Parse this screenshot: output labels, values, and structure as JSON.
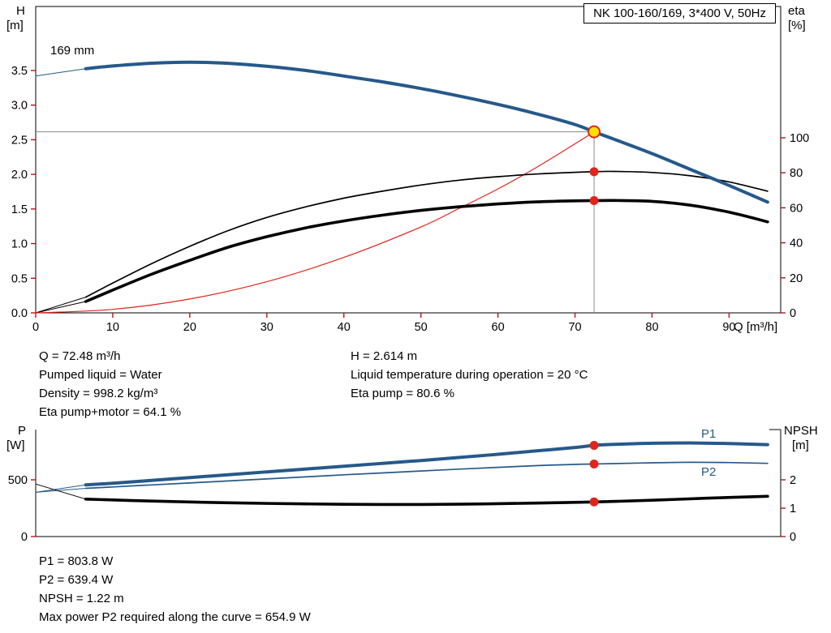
{
  "title_box": {
    "label": "NK 100-160/169, 3*400 V, 50Hz"
  },
  "impeller_label": "169 mm",
  "axes_labels": {
    "h1": "H",
    "h2": "[m]",
    "eta1": "eta",
    "eta2": "[%]",
    "q_unit": "Q [m³/h]",
    "p1": "P",
    "p2": "[W]",
    "npsh1": "NPSH",
    "npsh2": "[m]"
  },
  "series_labels": {
    "p1": "P1",
    "p2": "P2"
  },
  "info_left": [
    "Q = 72.48 m³/h",
    "Pumped liquid = Water",
    "Density = 998.2 kg/m³",
    "Eta pump+motor = 64.1 %"
  ],
  "info_right": [
    "H = 2.614 m",
    "Liquid temperature during operation = 20 °C",
    "Eta pump = 80.6 %"
  ],
  "results": [
    "P1 = 803.8 W",
    "P2 = 639.4 W",
    "NPSH = 1.22 m",
    "Max power P2 required along the curve = 654.9 W"
  ],
  "duty_point": {
    "q_m3h": 72.48,
    "h_m": 2.614,
    "eta_pump_pct": 80.6,
    "eta_pump_motor_pct": 64.1,
    "p1_w": 803.8,
    "p2_w": 639.4,
    "npsh_m": 1.22,
    "max_p2_w": 654.9
  },
  "colors": {
    "curve_blue": "#26598a",
    "curve_black": "#000000",
    "curve_red": "#e0251c",
    "duty_fill": "#ffdf00",
    "tick": "#c00000",
    "axis": "#000000",
    "crosshair": "#8a8a8a"
  },
  "chart_data": [
    {
      "type": "line",
      "title": "NK 100-160/169, 3*400 V, 50Hz",
      "xlabel": "Q [m³/h]",
      "ylabel_left": "H [m]",
      "ylabel_right": "eta [%]",
      "x_range": [
        0,
        96.7
      ],
      "x_ticks": [
        0,
        10,
        20,
        30,
        40,
        50,
        60,
        70,
        80,
        90
      ],
      "x_tick_labels": [
        "0",
        "10",
        "20",
        "30",
        "40",
        "50",
        "60",
        "70",
        "80",
        "90"
      ],
      "y_axes": {
        "H": {
          "min": 0,
          "max": 4.424,
          "side": "left",
          "ticks": [
            0,
            0.5,
            1,
            1.5,
            2,
            2.5,
            3,
            3.5
          ],
          "tick_labels": [
            "0.0",
            "0.5",
            "1.0",
            "1.5",
            "2.0",
            "2.5",
            "3.0",
            "3.5"
          ]
        },
        "eta": {
          "min": 0,
          "max": 175,
          "side": "right",
          "ticks": [
            0,
            20,
            40,
            60,
            80,
            100
          ],
          "tick_labels": [
            "0",
            "20",
            "40",
            "60",
            "80",
            "100"
          ]
        }
      },
      "crosshair": {
        "q": 72.48,
        "v": 2.614,
        "axis": "H"
      },
      "series": [
        {
          "name": "qh-curve-ext",
          "axis": "H",
          "color": "#26598a",
          "width": 1,
          "points": [
            [
              0,
              3.42
            ],
            [
              6.5,
              3.525
            ]
          ]
        },
        {
          "name": "eta-pump-curve-ext",
          "axis": "eta",
          "color": "#000000",
          "width": 1,
          "points": [
            [
              0,
              0
            ],
            [
              6.5,
              9
            ]
          ]
        },
        {
          "name": "eta-pump-motor-curve-ext",
          "axis": "eta",
          "color": "#000000",
          "width": 1,
          "points": [
            [
              0,
              0
            ],
            [
              6.5,
              6.5
            ]
          ]
        },
        {
          "name": "affinity-parabola",
          "axis": "H",
          "color": "#e0251c",
          "width": 1.2,
          "points": [
            [
              0,
              0
            ],
            [
              10,
              0.05
            ],
            [
              20,
              0.2
            ],
            [
              30,
              0.45
            ],
            [
              40,
              0.8
            ],
            [
              50,
              1.24
            ],
            [
              55,
              1.51
            ],
            [
              60,
              1.79
            ],
            [
              65,
              2.1
            ],
            [
              70,
              2.44
            ],
            [
              72.48,
              2.614
            ]
          ]
        },
        {
          "name": "eta-pump-curve",
          "axis": "eta",
          "color": "#000000",
          "width": 1.7,
          "points": [
            [
              6.5,
              9
            ],
            [
              10,
              17
            ],
            [
              15,
              28
            ],
            [
              20,
              38
            ],
            [
              25,
              47
            ],
            [
              30,
              54.5
            ],
            [
              35,
              60.5
            ],
            [
              40,
              65.5
            ],
            [
              45,
              69.5
            ],
            [
              50,
              73
            ],
            [
              55,
              75.8
            ],
            [
              60,
              77.8
            ],
            [
              65,
              79.3
            ],
            [
              70,
              80.3
            ],
            [
              72.48,
              80.6
            ],
            [
              75,
              80.8
            ],
            [
              80,
              80.2
            ],
            [
              85,
              78.3
            ],
            [
              90,
              74.8
            ],
            [
              95,
              69.5
            ]
          ]
        },
        {
          "name": "eta-pump-motor-curve",
          "axis": "eta",
          "color": "#000000",
          "width": 3.6,
          "points": [
            [
              6.5,
              6.5
            ],
            [
              10,
              13
            ],
            [
              15,
              22
            ],
            [
              20,
              30
            ],
            [
              25,
              37.5
            ],
            [
              30,
              43.5
            ],
            [
              35,
              48.5
            ],
            [
              40,
              52.5
            ],
            [
              45,
              55.8
            ],
            [
              50,
              58.5
            ],
            [
              55,
              60.6
            ],
            [
              60,
              62.2
            ],
            [
              65,
              63.4
            ],
            [
              70,
              64
            ],
            [
              72.48,
              64.1
            ],
            [
              75,
              64.2
            ],
            [
              80,
              63.7
            ],
            [
              85,
              61.5
            ],
            [
              90,
              57.5
            ],
            [
              95,
              52
            ]
          ]
        },
        {
          "name": "qh-curve",
          "axis": "H",
          "color": "#26598a",
          "width": 4,
          "points": [
            [
              6.5,
              3.525
            ],
            [
              10,
              3.565
            ],
            [
              15,
              3.605
            ],
            [
              20,
              3.62
            ],
            [
              25,
              3.603
            ],
            [
              30,
              3.562
            ],
            [
              35,
              3.5
            ],
            [
              40,
              3.42
            ],
            [
              45,
              3.335
            ],
            [
              50,
              3.24
            ],
            [
              55,
              3.13
            ],
            [
              60,
              3.01
            ],
            [
              65,
              2.875
            ],
            [
              70,
              2.72
            ],
            [
              72.48,
              2.614
            ],
            [
              75,
              2.51
            ],
            [
              80,
              2.3
            ],
            [
              85,
              2.07
            ],
            [
              90,
              1.84
            ],
            [
              95,
              1.6
            ]
          ]
        }
      ],
      "markers": [
        {
          "name": "duty-point",
          "axis": "H",
          "q": 72.48,
          "v": 2.614,
          "r": 7,
          "fill": "#ffdf00",
          "stroke": "#e0251c",
          "stroke_width": 2
        },
        {
          "name": "eta-pump-point",
          "axis": "eta",
          "q": 72.48,
          "v": 80.6,
          "r": 5.5,
          "fill": "#e0251c"
        },
        {
          "name": "eta-pump-motor-point",
          "axis": "eta",
          "q": 72.48,
          "v": 64.1,
          "r": 5.5,
          "fill": "#e0251c"
        }
      ]
    },
    {
      "type": "line",
      "xlabel": "Q [m³/h]",
      "ylabel_left": "P [W]",
      "ylabel_right": "NPSH [m]",
      "x_range": [
        0,
        96.7
      ],
      "x_ticks": [],
      "y_axes": {
        "P": {
          "min": 0,
          "max": 942.9,
          "side": "left",
          "ticks": [
            0,
            500
          ],
          "tick_labels": [
            "0",
            "500"
          ]
        },
        "NPSH": {
          "min": 0,
          "max": 3.771,
          "side": "right",
          "ticks": [
            0,
            1,
            2
          ],
          "tick_labels": [
            "0",
            "1",
            "2"
          ]
        }
      },
      "series": [
        {
          "name": "p1-curve-ext",
          "axis": "P",
          "color": "#26598a",
          "width": 1,
          "points": [
            [
              0,
              390
            ],
            [
              6.5,
              455
            ]
          ]
        },
        {
          "name": "p2-curve-ext",
          "axis": "P",
          "color": "#26598a",
          "width": 1,
          "points": [
            [
              0,
              390
            ],
            [
              6.5,
              425
            ]
          ]
        },
        {
          "name": "npsh-curve-ext",
          "axis": "NPSH",
          "color": "#000000",
          "width": 1,
          "points": [
            [
              0,
              1.85
            ],
            [
              6.5,
              1.32
            ]
          ]
        },
        {
          "name": "p2-curve",
          "axis": "P",
          "color": "#26598a",
          "width": 1.7,
          "points": [
            [
              6.5,
              425
            ],
            [
              10,
              437
            ],
            [
              15,
              455
            ],
            [
              20,
              472
            ],
            [
              25,
              490
            ],
            [
              30,
              508
            ],
            [
              35,
              526
            ],
            [
              40,
              544
            ],
            [
              45,
              561
            ],
            [
              50,
              578
            ],
            [
              55,
              594
            ],
            [
              60,
              610
            ],
            [
              65,
              625
            ],
            [
              70,
              636
            ],
            [
              72.48,
              639.4
            ],
            [
              75,
              643
            ],
            [
              80,
              650
            ],
            [
              85,
              654.9
            ],
            [
              90,
              652
            ],
            [
              95,
              645
            ]
          ]
        },
        {
          "name": "p1-curve",
          "axis": "P",
          "color": "#26598a",
          "width": 4,
          "points": [
            [
              6.5,
              455
            ],
            [
              10,
              470
            ],
            [
              15,
              495
            ],
            [
              20,
              520
            ],
            [
              25,
              545
            ],
            [
              30,
              570
            ],
            [
              35,
              595
            ],
            [
              40,
              620
            ],
            [
              45,
              645
            ],
            [
              50,
              670
            ],
            [
              55,
              697
            ],
            [
              60,
              725
            ],
            [
              65,
              755
            ],
            [
              70,
              785
            ],
            [
              72.48,
              803.8
            ],
            [
              75,
              812
            ],
            [
              80,
              822
            ],
            [
              85,
              825
            ],
            [
              90,
              820
            ],
            [
              95,
              810
            ]
          ]
        },
        {
          "name": "npsh-curve",
          "axis": "NPSH",
          "color": "#000000",
          "width": 3.6,
          "points": [
            [
              6.5,
              1.32
            ],
            [
              15,
              1.25
            ],
            [
              25,
              1.19
            ],
            [
              35,
              1.15
            ],
            [
              45,
              1.13
            ],
            [
              55,
              1.14
            ],
            [
              65,
              1.18
            ],
            [
              72.48,
              1.22
            ],
            [
              80,
              1.28
            ],
            [
              87,
              1.35
            ],
            [
              95,
              1.42
            ]
          ]
        }
      ],
      "markers": [
        {
          "name": "p1-point",
          "axis": "P",
          "q": 72.48,
          "v": 803.8,
          "r": 5.5,
          "fill": "#e0251c"
        },
        {
          "name": "p2-point",
          "axis": "P",
          "q": 72.48,
          "v": 639.4,
          "r": 5.5,
          "fill": "#e0251c"
        },
        {
          "name": "npsh-point",
          "axis": "NPSH",
          "q": 72.48,
          "v": 1.22,
          "r": 5.5,
          "fill": "#e0251c"
        }
      ]
    }
  ]
}
